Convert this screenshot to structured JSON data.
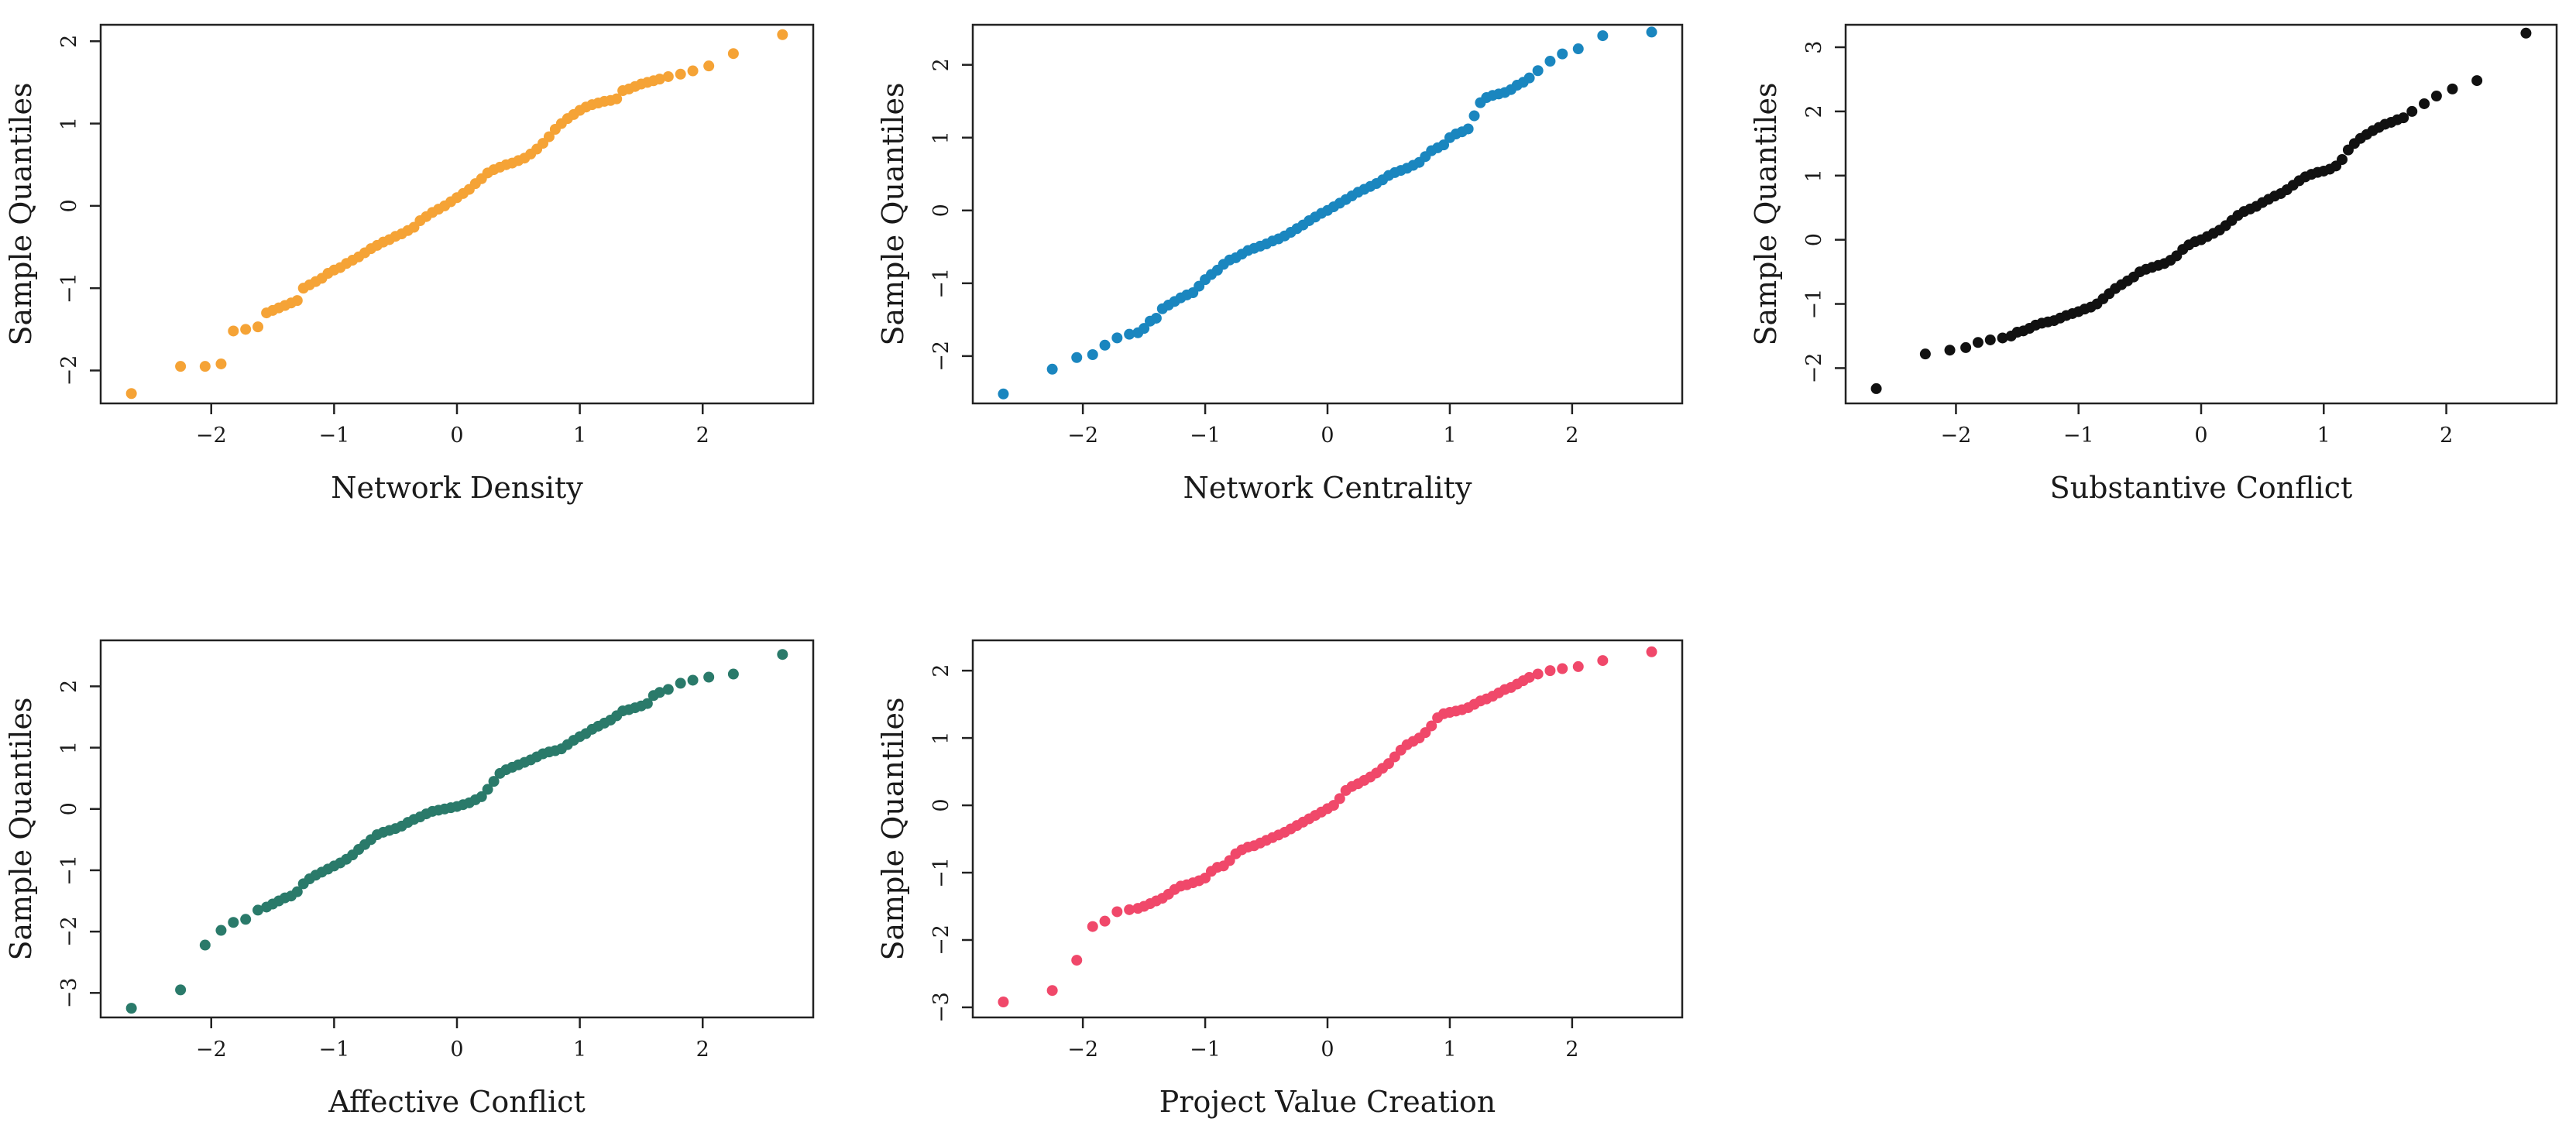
{
  "chart_data": [
    {
      "type": "scatter",
      "title": "",
      "xlabel": "Network Density",
      "ylabel": "Sample Quantiles",
      "color": "#F5A336",
      "xlim": [
        -2.9,
        2.9
      ],
      "ylim": [
        -2.4,
        2.2
      ],
      "xticks": [
        -2,
        -1,
        0,
        1,
        2
      ],
      "yticks": [
        -2,
        -1,
        0,
        1,
        2
      ],
      "xtick_labels": [
        "−2",
        "−1",
        "0",
        "1",
        "2"
      ],
      "ytick_labels": [
        "−2",
        "−1",
        "0",
        "1",
        "2"
      ],
      "x": [
        -2.65,
        -2.25,
        -2.05,
        -1.92,
        -1.82,
        -1.72,
        -1.62,
        -1.55,
        -1.5,
        -1.45,
        -1.4,
        -1.35,
        -1.3,
        -1.25,
        -1.2,
        -1.15,
        -1.1,
        -1.05,
        -1.0,
        -0.95,
        -0.9,
        -0.85,
        -0.8,
        -0.75,
        -0.7,
        -0.65,
        -0.6,
        -0.55,
        -0.5,
        -0.45,
        -0.4,
        -0.35,
        -0.3,
        -0.25,
        -0.2,
        -0.15,
        -0.1,
        -0.05,
        0.0,
        0.05,
        0.1,
        0.15,
        0.2,
        0.25,
        0.3,
        0.35,
        0.4,
        0.45,
        0.5,
        0.55,
        0.6,
        0.65,
        0.7,
        0.75,
        0.8,
        0.85,
        0.9,
        0.95,
        1.0,
        1.05,
        1.1,
        1.15,
        1.2,
        1.25,
        1.3,
        1.35,
        1.4,
        1.45,
        1.5,
        1.55,
        1.6,
        1.65,
        1.72,
        1.82,
        1.92,
        2.05,
        2.25,
        2.65
      ],
      "y": [
        -2.28,
        -1.95,
        -1.95,
        -1.92,
        -1.52,
        -1.5,
        -1.47,
        -1.3,
        -1.27,
        -1.24,
        -1.21,
        -1.18,
        -1.15,
        -1.0,
        -0.96,
        -0.92,
        -0.88,
        -0.82,
        -0.78,
        -0.75,
        -0.7,
        -0.66,
        -0.62,
        -0.57,
        -0.52,
        -0.48,
        -0.44,
        -0.41,
        -0.37,
        -0.34,
        -0.3,
        -0.26,
        -0.18,
        -0.13,
        -0.08,
        -0.04,
        0.0,
        0.05,
        0.1,
        0.15,
        0.2,
        0.27,
        0.33,
        0.4,
        0.44,
        0.47,
        0.5,
        0.52,
        0.55,
        0.58,
        0.63,
        0.69,
        0.76,
        0.84,
        0.93,
        1.0,
        1.06,
        1.11,
        1.16,
        1.2,
        1.23,
        1.25,
        1.27,
        1.28,
        1.3,
        1.4,
        1.42,
        1.45,
        1.48,
        1.5,
        1.52,
        1.54,
        1.57,
        1.6,
        1.64,
        1.7,
        1.85,
        2.08
      ]
    },
    {
      "type": "scatter",
      "title": "",
      "xlabel": "Network Centrality",
      "ylabel": "Sample Quantiles",
      "color": "#1A86BF",
      "xlim": [
        -2.9,
        2.9
      ],
      "ylim": [
        -2.65,
        2.55
      ],
      "xticks": [
        -2,
        -1,
        0,
        1,
        2
      ],
      "yticks": [
        -2,
        -1,
        0,
        1,
        2
      ],
      "xtick_labels": [
        "−2",
        "−1",
        "0",
        "1",
        "2"
      ],
      "ytick_labels": [
        "−2",
        "−1",
        "0",
        "1",
        "2"
      ],
      "x": [
        -2.65,
        -2.25,
        -2.05,
        -1.92,
        -1.82,
        -1.72,
        -1.62,
        -1.55,
        -1.5,
        -1.45,
        -1.4,
        -1.35,
        -1.3,
        -1.25,
        -1.2,
        -1.15,
        -1.1,
        -1.05,
        -1.0,
        -0.95,
        -0.9,
        -0.85,
        -0.8,
        -0.75,
        -0.7,
        -0.65,
        -0.6,
        -0.55,
        -0.5,
        -0.45,
        -0.4,
        -0.35,
        -0.3,
        -0.25,
        -0.2,
        -0.15,
        -0.1,
        -0.05,
        0.0,
        0.05,
        0.1,
        0.15,
        0.2,
        0.25,
        0.3,
        0.35,
        0.4,
        0.45,
        0.5,
        0.55,
        0.6,
        0.65,
        0.7,
        0.75,
        0.8,
        0.85,
        0.9,
        0.95,
        1.0,
        1.05,
        1.1,
        1.15,
        1.2,
        1.25,
        1.3,
        1.35,
        1.4,
        1.45,
        1.5,
        1.55,
        1.6,
        1.65,
        1.72,
        1.82,
        1.92,
        2.05,
        2.25,
        2.65
      ],
      "y": [
        -2.52,
        -2.18,
        -2.02,
        -1.98,
        -1.85,
        -1.75,
        -1.7,
        -1.68,
        -1.62,
        -1.52,
        -1.48,
        -1.35,
        -1.3,
        -1.25,
        -1.2,
        -1.16,
        -1.13,
        -1.04,
        -0.95,
        -0.88,
        -0.82,
        -0.74,
        -0.68,
        -0.65,
        -0.6,
        -0.55,
        -0.52,
        -0.49,
        -0.46,
        -0.42,
        -0.39,
        -0.35,
        -0.3,
        -0.25,
        -0.2,
        -0.14,
        -0.09,
        -0.04,
        0.0,
        0.05,
        0.1,
        0.15,
        0.2,
        0.25,
        0.29,
        0.33,
        0.37,
        0.42,
        0.48,
        0.52,
        0.55,
        0.58,
        0.62,
        0.66,
        0.74,
        0.82,
        0.86,
        0.9,
        1.0,
        1.05,
        1.08,
        1.12,
        1.3,
        1.48,
        1.55,
        1.58,
        1.6,
        1.62,
        1.66,
        1.72,
        1.76,
        1.82,
        1.92,
        2.05,
        2.15,
        2.22,
        2.4,
        2.45
      ]
    },
    {
      "type": "scatter",
      "title": "",
      "xlabel": "Substantive Conflict",
      "ylabel": "Sample Quantiles",
      "color": "#111111",
      "xlim": [
        -2.9,
        2.9
      ],
      "ylim": [
        -2.55,
        3.35
      ],
      "xticks": [
        -2,
        -1,
        0,
        1,
        2
      ],
      "yticks": [
        -2,
        -1,
        0,
        1,
        2,
        3
      ],
      "xtick_labels": [
        "−2",
        "−1",
        "0",
        "1",
        "2"
      ],
      "ytick_labels": [
        "−2",
        "−1",
        "0",
        "1",
        "2",
        "3"
      ],
      "x": [
        -2.65,
        -2.25,
        -2.05,
        -1.92,
        -1.82,
        -1.72,
        -1.62,
        -1.55,
        -1.5,
        -1.45,
        -1.4,
        -1.35,
        -1.3,
        -1.25,
        -1.2,
        -1.15,
        -1.1,
        -1.05,
        -1.0,
        -0.95,
        -0.9,
        -0.85,
        -0.8,
        -0.75,
        -0.7,
        -0.65,
        -0.6,
        -0.55,
        -0.5,
        -0.45,
        -0.4,
        -0.35,
        -0.3,
        -0.25,
        -0.2,
        -0.15,
        -0.1,
        -0.05,
        0.0,
        0.05,
        0.1,
        0.15,
        0.2,
        0.25,
        0.3,
        0.35,
        0.4,
        0.45,
        0.5,
        0.55,
        0.6,
        0.65,
        0.7,
        0.75,
        0.8,
        0.85,
        0.9,
        0.95,
        1.0,
        1.05,
        1.1,
        1.15,
        1.2,
        1.25,
        1.3,
        1.35,
        1.4,
        1.45,
        1.5,
        1.55,
        1.6,
        1.65,
        1.72,
        1.82,
        1.92,
        2.05,
        2.25,
        2.65
      ],
      "y": [
        -2.32,
        -1.78,
        -1.72,
        -1.68,
        -1.6,
        -1.56,
        -1.53,
        -1.5,
        -1.44,
        -1.42,
        -1.38,
        -1.33,
        -1.3,
        -1.28,
        -1.26,
        -1.22,
        -1.18,
        -1.15,
        -1.12,
        -1.08,
        -1.05,
        -1.0,
        -0.92,
        -0.84,
        -0.76,
        -0.7,
        -0.64,
        -0.58,
        -0.5,
        -0.46,
        -0.43,
        -0.4,
        -0.37,
        -0.32,
        -0.25,
        -0.15,
        -0.08,
        -0.03,
        0.0,
        0.05,
        0.1,
        0.15,
        0.22,
        0.3,
        0.38,
        0.44,
        0.48,
        0.52,
        0.58,
        0.63,
        0.68,
        0.72,
        0.78,
        0.85,
        0.92,
        0.98,
        1.02,
        1.05,
        1.07,
        1.1,
        1.15,
        1.25,
        1.4,
        1.5,
        1.58,
        1.64,
        1.7,
        1.75,
        1.8,
        1.83,
        1.87,
        1.9,
        2.0,
        2.12,
        2.24,
        2.35,
        2.48,
        3.22
      ]
    },
    {
      "type": "scatter",
      "title": "",
      "xlabel": "Affective Conflict",
      "ylabel": "Sample Quantiles",
      "color": "#2A7A6A",
      "xlim": [
        -2.9,
        2.9
      ],
      "ylim": [
        -3.4,
        2.75
      ],
      "xticks": [
        -2,
        -1,
        0,
        1,
        2
      ],
      "yticks": [
        -3,
        -2,
        -1,
        0,
        1,
        2
      ],
      "xtick_labels": [
        "−2",
        "−1",
        "0",
        "1",
        "2"
      ],
      "ytick_labels": [
        "−3",
        "−2",
        "−1",
        "0",
        "1",
        "2"
      ],
      "x": [
        -2.65,
        -2.25,
        -2.05,
        -1.92,
        -1.82,
        -1.72,
        -1.62,
        -1.55,
        -1.5,
        -1.45,
        -1.4,
        -1.35,
        -1.3,
        -1.25,
        -1.2,
        -1.15,
        -1.1,
        -1.05,
        -1.0,
        -0.95,
        -0.9,
        -0.85,
        -0.8,
        -0.75,
        -0.7,
        -0.65,
        -0.6,
        -0.55,
        -0.5,
        -0.45,
        -0.4,
        -0.35,
        -0.3,
        -0.25,
        -0.2,
        -0.15,
        -0.1,
        -0.05,
        0.0,
        0.05,
        0.1,
        0.15,
        0.2,
        0.25,
        0.3,
        0.35,
        0.4,
        0.45,
        0.5,
        0.55,
        0.6,
        0.65,
        0.7,
        0.75,
        0.8,
        0.85,
        0.9,
        0.95,
        1.0,
        1.05,
        1.1,
        1.15,
        1.2,
        1.25,
        1.3,
        1.35,
        1.4,
        1.45,
        1.5,
        1.55,
        1.6,
        1.65,
        1.72,
        1.82,
        1.92,
        2.05,
        2.25,
        2.65
      ],
      "y": [
        -3.25,
        -2.95,
        -2.22,
        -1.98,
        -1.85,
        -1.8,
        -1.65,
        -1.6,
        -1.55,
        -1.5,
        -1.45,
        -1.42,
        -1.35,
        -1.22,
        -1.14,
        -1.08,
        -1.03,
        -0.98,
        -0.93,
        -0.88,
        -0.82,
        -0.75,
        -0.66,
        -0.58,
        -0.5,
        -0.42,
        -0.38,
        -0.35,
        -0.32,
        -0.28,
        -0.22,
        -0.17,
        -0.13,
        -0.08,
        -0.04,
        -0.02,
        0.0,
        0.02,
        0.04,
        0.07,
        0.1,
        0.15,
        0.2,
        0.32,
        0.45,
        0.58,
        0.64,
        0.68,
        0.72,
        0.76,
        0.8,
        0.85,
        0.9,
        0.93,
        0.95,
        0.98,
        1.05,
        1.12,
        1.18,
        1.23,
        1.3,
        1.35,
        1.4,
        1.45,
        1.52,
        1.6,
        1.62,
        1.65,
        1.68,
        1.72,
        1.85,
        1.9,
        1.95,
        2.05,
        2.1,
        2.15,
        2.2,
        2.52
      ]
    },
    {
      "type": "scatter",
      "title": "",
      "xlabel": "Project Value Creation",
      "ylabel": "Sample Quantiles",
      "color": "#F0486A",
      "xlim": [
        -2.9,
        2.9
      ],
      "ylim": [
        -3.15,
        2.45
      ],
      "xticks": [
        -2,
        -1,
        0,
        1,
        2
      ],
      "yticks": [
        -3,
        -2,
        -1,
        0,
        1,
        2
      ],
      "xtick_labels": [
        "−2",
        "−1",
        "0",
        "1",
        "2"
      ],
      "ytick_labels": [
        "−3",
        "−2",
        "−1",
        "0",
        "1",
        "2"
      ],
      "x": [
        -2.65,
        -2.25,
        -2.05,
        -1.92,
        -1.82,
        -1.72,
        -1.62,
        -1.55,
        -1.5,
        -1.45,
        -1.4,
        -1.35,
        -1.3,
        -1.25,
        -1.2,
        -1.15,
        -1.1,
        -1.05,
        -1.0,
        -0.95,
        -0.9,
        -0.85,
        -0.8,
        -0.75,
        -0.7,
        -0.65,
        -0.6,
        -0.55,
        -0.5,
        -0.45,
        -0.4,
        -0.35,
        -0.3,
        -0.25,
        -0.2,
        -0.15,
        -0.1,
        -0.05,
        0.0,
        0.05,
        0.1,
        0.15,
        0.2,
        0.25,
        0.3,
        0.35,
        0.4,
        0.45,
        0.5,
        0.55,
        0.6,
        0.65,
        0.7,
        0.75,
        0.8,
        0.85,
        0.9,
        0.95,
        1.0,
        1.05,
        1.1,
        1.15,
        1.2,
        1.25,
        1.3,
        1.35,
        1.4,
        1.45,
        1.5,
        1.55,
        1.6,
        1.65,
        1.72,
        1.82,
        1.92,
        2.05,
        2.25,
        2.65
      ],
      "y": [
        -2.92,
        -2.75,
        -2.3,
        -1.8,
        -1.72,
        -1.58,
        -1.55,
        -1.53,
        -1.5,
        -1.46,
        -1.42,
        -1.38,
        -1.32,
        -1.25,
        -1.2,
        -1.18,
        -1.15,
        -1.12,
        -1.08,
        -0.98,
        -0.92,
        -0.9,
        -0.82,
        -0.72,
        -0.66,
        -0.62,
        -0.6,
        -0.56,
        -0.52,
        -0.48,
        -0.44,
        -0.4,
        -0.35,
        -0.3,
        -0.25,
        -0.2,
        -0.15,
        -0.1,
        -0.05,
        0.0,
        0.1,
        0.22,
        0.28,
        0.32,
        0.37,
        0.42,
        0.48,
        0.55,
        0.62,
        0.72,
        0.82,
        0.9,
        0.95,
        1.0,
        1.08,
        1.18,
        1.3,
        1.36,
        1.38,
        1.4,
        1.42,
        1.45,
        1.5,
        1.55,
        1.58,
        1.62,
        1.67,
        1.72,
        1.75,
        1.8,
        1.85,
        1.9,
        1.95,
        2.0,
        2.03,
        2.06,
        2.15,
        2.28
      ]
    }
  ]
}
